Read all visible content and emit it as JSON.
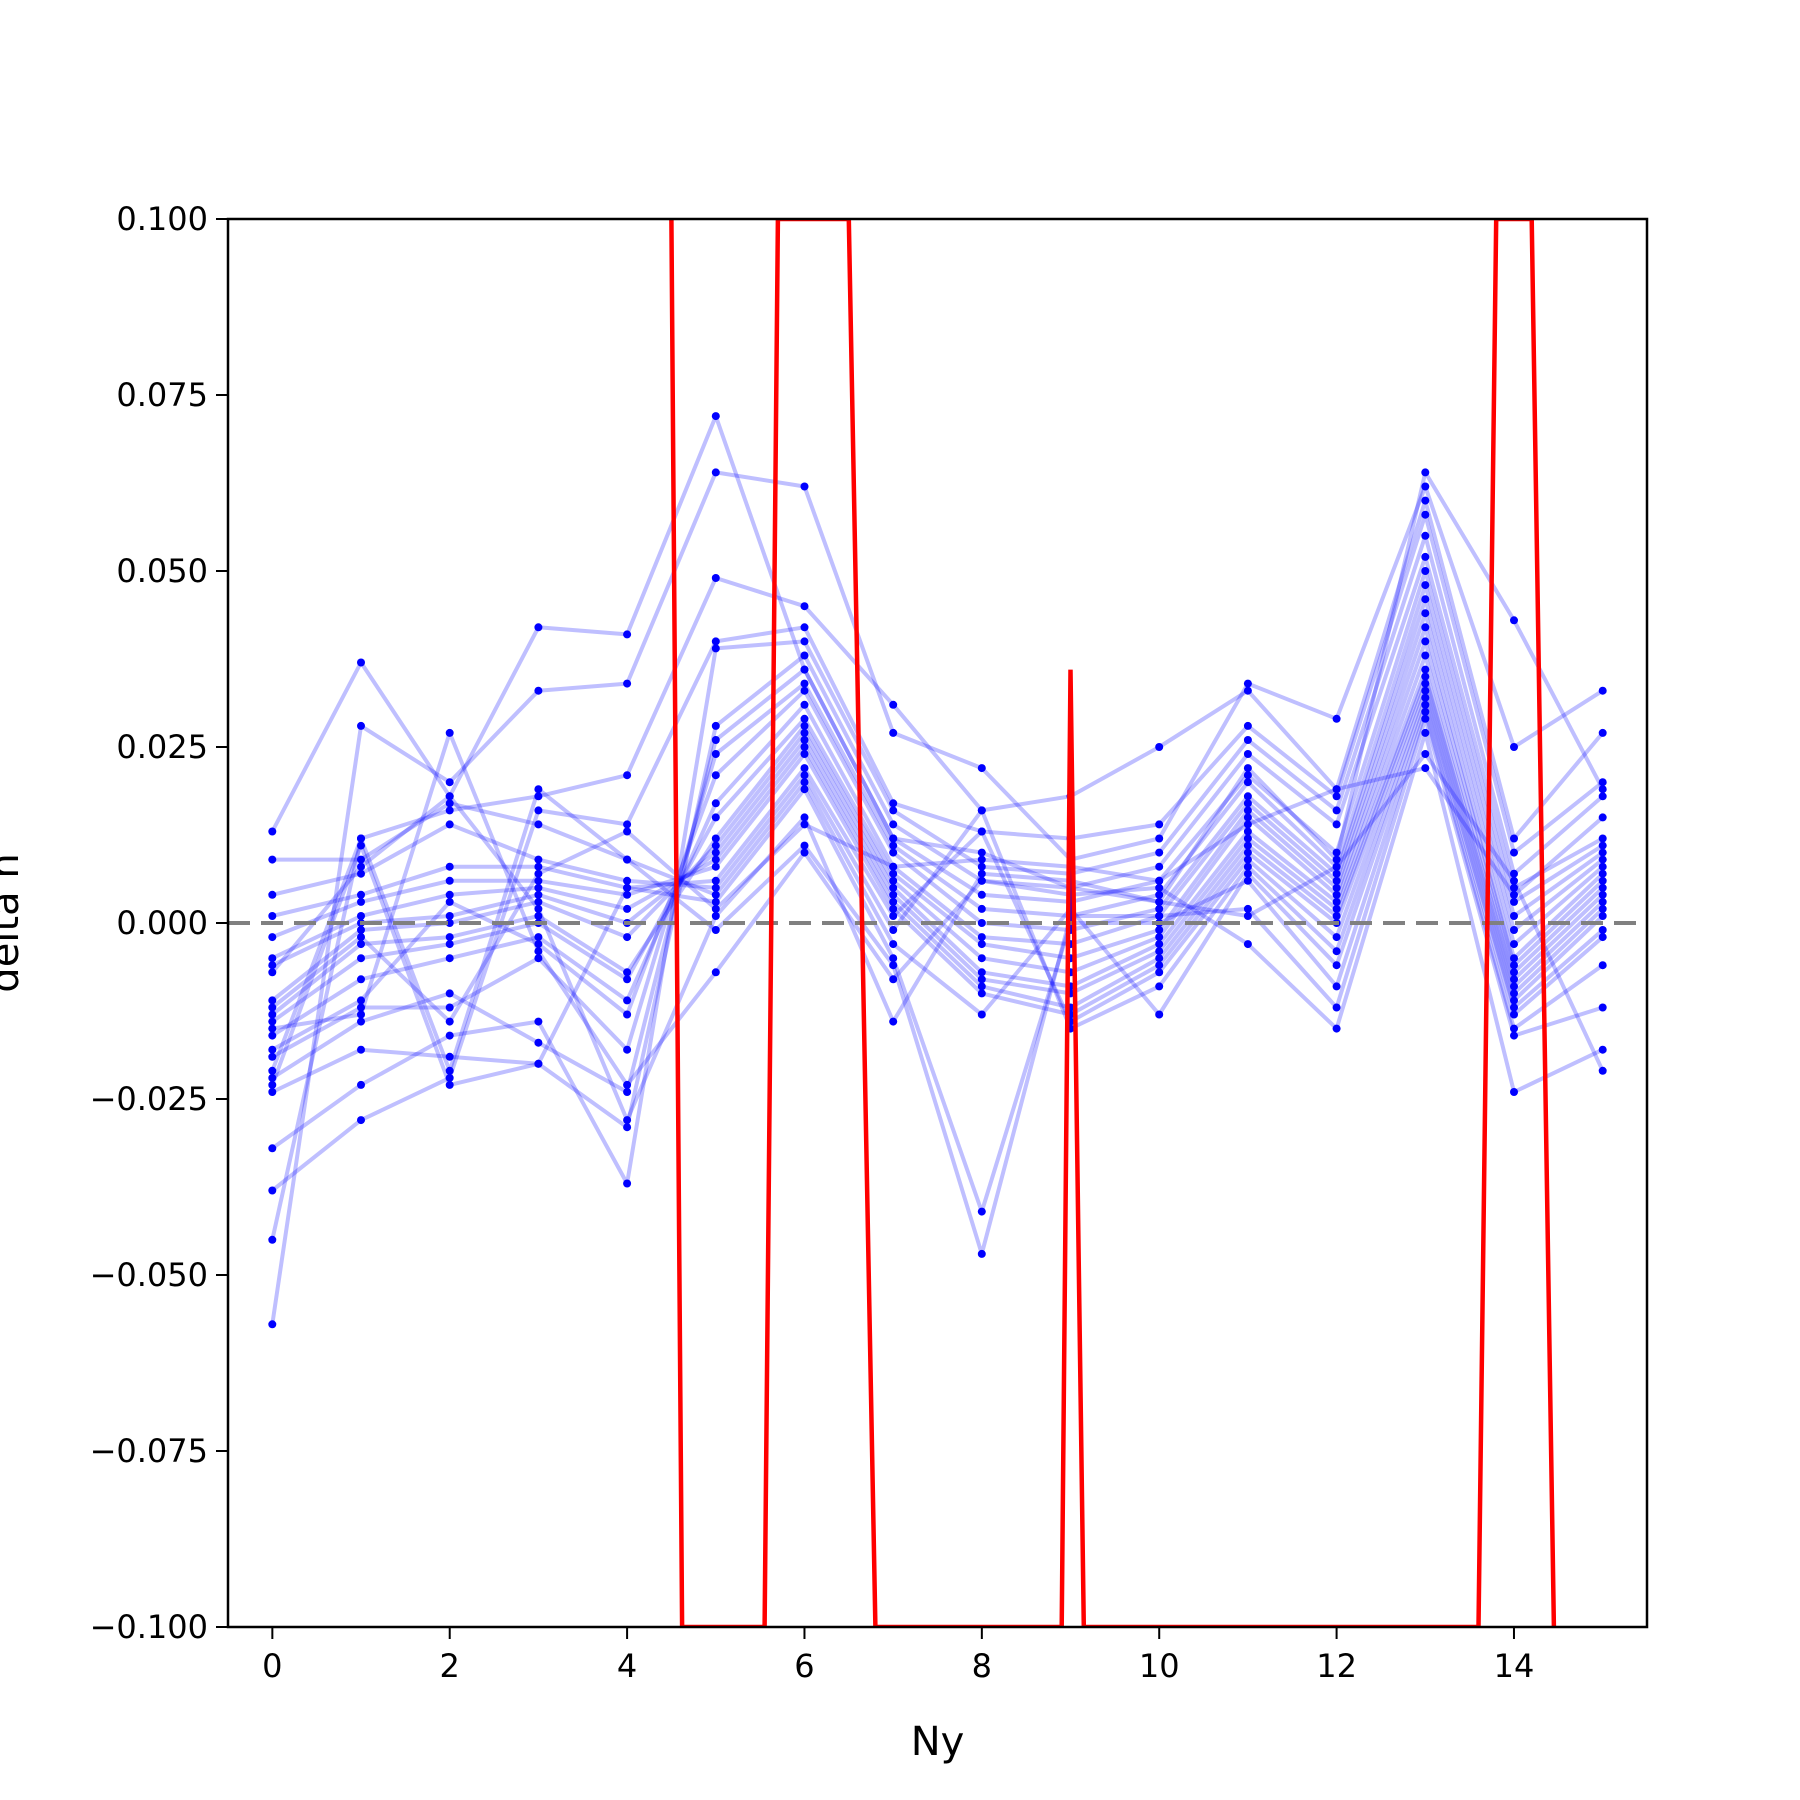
{
  "chart_data": {
    "type": "line",
    "xlabel": "Ny",
    "ylabel": "delta n",
    "xlim": [
      -0.5,
      15.5
    ],
    "ylim": [
      -0.1,
      0.1
    ],
    "xticks": [
      "0",
      "2",
      "4",
      "6",
      "8",
      "10",
      "12",
      "14"
    ],
    "yticks": [
      "−0.100",
      "−0.075",
      "−0.050",
      "−0.025",
      "0.000",
      "0.025",
      "0.050",
      "0.075",
      "0.100"
    ],
    "reference_line": {
      "y": 0.0,
      "style": "dashed",
      "color": "#808080"
    },
    "highlight_series": {
      "color": "#ff0000",
      "x": [
        4.5,
        4.62,
        5.55,
        5.7,
        6.5,
        6.8,
        8.9,
        9.0,
        9.15,
        13.6,
        13.8,
        14.2,
        14.45
      ],
      "y": [
        0.1,
        -0.1,
        -0.1,
        0.1,
        0.1,
        -0.1,
        -0.1,
        0.036,
        -0.1,
        -0.1,
        0.1,
        0.1,
        -0.1
      ]
    },
    "blue_series": {
      "color": "#0000ff",
      "x": [
        0,
        1,
        2,
        3,
        4,
        5,
        6,
        7,
        8,
        9,
        10,
        11,
        12,
        13,
        14,
        15
      ],
      "series": [
        {
          "values": [
            0.013,
            0.037,
            0.018,
            0.042,
            0.041,
            0.072,
            0.036,
            0.012,
            0.01,
            0.005,
            0.003,
            0.022,
            0.009,
            0.064,
            0.043,
            0.019
          ]
        },
        {
          "values": [
            -0.057,
            0.028,
            0.02,
            0.033,
            0.034,
            0.064,
            0.062,
            0.027,
            0.022,
            0.009,
            0.012,
            0.034,
            0.029,
            0.062,
            0.025,
            0.033
          ]
        },
        {
          "values": [
            -0.045,
            0.012,
            0.016,
            0.018,
            0.021,
            0.049,
            0.045,
            0.031,
            0.016,
            0.018,
            0.025,
            0.033,
            0.019,
            0.06,
            0.012,
            0.027
          ]
        },
        {
          "values": [
            -0.038,
            -0.028,
            -0.022,
            0.016,
            0.014,
            0.04,
            0.042,
            0.017,
            0.013,
            0.012,
            0.014,
            0.028,
            0.018,
            0.058,
            0.01,
            0.02
          ]
        },
        {
          "values": [
            -0.032,
            -0.023,
            -0.016,
            -0.014,
            -0.037,
            0.039,
            0.04,
            0.016,
            0.008,
            0.007,
            0.01,
            0.026,
            0.016,
            0.055,
            0.007,
            0.018
          ]
        },
        {
          "values": [
            -0.024,
            -0.018,
            -0.019,
            -0.02,
            -0.029,
            0.028,
            0.038,
            0.014,
            0.006,
            0.005,
            0.008,
            0.024,
            0.014,
            0.052,
            0.005,
            0.012
          ]
        },
        {
          "values": [
            -0.022,
            -0.014,
            -0.01,
            -0.017,
            -0.024,
            0.026,
            0.036,
            0.012,
            0.004,
            0.003,
            0.006,
            0.021,
            0.01,
            0.05,
            0.003,
            0.011
          ]
        },
        {
          "values": [
            -0.019,
            -0.012,
            -0.012,
            -0.005,
            -0.018,
            0.024,
            0.034,
            0.011,
            0.002,
            0.001,
            0.004,
            0.02,
            0.008,
            0.048,
            0.001,
            0.01
          ]
        },
        {
          "values": [
            -0.018,
            -0.011,
            0.003,
            -0.003,
            -0.013,
            0.021,
            0.033,
            0.01,
            0.0,
            -0.001,
            0.002,
            0.018,
            0.007,
            0.046,
            -0.001,
            0.009
          ]
        },
        {
          "values": [
            -0.016,
            -0.008,
            -0.005,
            -0.002,
            -0.011,
            0.017,
            0.031,
            0.008,
            -0.002,
            -0.003,
            0.001,
            0.017,
            0.006,
            0.044,
            -0.003,
            0.008
          ]
        },
        {
          "values": [
            -0.014,
            -0.005,
            -0.003,
            0.0,
            -0.008,
            0.015,
            0.029,
            0.007,
            -0.003,
            -0.005,
            -0.001,
            0.016,
            0.005,
            0.042,
            -0.005,
            0.007
          ]
        },
        {
          "values": [
            -0.013,
            -0.003,
            -0.002,
            0.001,
            -0.007,
            0.012,
            0.028,
            0.006,
            -0.005,
            -0.007,
            -0.002,
            0.015,
            0.004,
            0.04,
            -0.006,
            0.006
          ]
        },
        {
          "values": [
            -0.011,
            -0.001,
            0.0,
            0.003,
            -0.002,
            0.011,
            0.027,
            0.005,
            -0.007,
            -0.009,
            -0.003,
            0.013,
            0.003,
            0.038,
            -0.007,
            0.005
          ]
        },
        {
          "values": [
            -0.006,
            0.0,
            0.001,
            0.004,
            0.0,
            0.01,
            0.026,
            0.004,
            -0.008,
            -0.01,
            -0.004,
            0.012,
            0.002,
            0.036,
            -0.008,
            0.004
          ]
        },
        {
          "values": [
            -0.005,
            0.001,
            0.004,
            0.005,
            0.002,
            0.009,
            0.025,
            0.003,
            -0.009,
            -0.012,
            -0.005,
            0.011,
            0.001,
            0.035,
            -0.009,
            0.003
          ]
        },
        {
          "values": [
            -0.002,
            0.003,
            0.006,
            0.006,
            0.004,
            0.008,
            0.024,
            0.002,
            -0.01,
            -0.013,
            -0.006,
            0.01,
            0.0,
            0.034,
            -0.01,
            0.002
          ]
        },
        {
          "values": [
            0.001,
            0.004,
            0.008,
            0.008,
            0.005,
            0.006,
            0.022,
            0.001,
            0.013,
            -0.014,
            -0.007,
            0.009,
            -0.002,
            0.033,
            -0.011,
            0.001
          ]
        },
        {
          "values": [
            0.004,
            0.007,
            0.014,
            0.009,
            0.006,
            0.005,
            0.021,
            -0.001,
            0.016,
            -0.015,
            -0.009,
            0.008,
            -0.004,
            0.032,
            -0.012,
            -0.001
          ]
        },
        {
          "values": [
            0.009,
            0.009,
            0.017,
            0.014,
            0.009,
            0.004,
            0.02,
            -0.003,
            -0.013,
            0.002,
            -0.013,
            0.007,
            -0.006,
            0.031,
            -0.013,
            -0.002
          ]
        },
        {
          "values": [
            -0.023,
            0.011,
            -0.023,
            -0.02,
            0.005,
            0.003,
            0.019,
            -0.005,
            -0.041,
            0.0,
            0.0,
            0.006,
            -0.009,
            0.03,
            -0.015,
            -0.006
          ]
        },
        {
          "values": [
            -0.021,
            0.012,
            -0.021,
            0.019,
            0.009,
            -0.001,
            0.011,
            -0.006,
            -0.047,
            0.001,
            0.001,
            0.002,
            -0.012,
            0.029,
            -0.016,
            -0.012
          ]
        },
        {
          "values": [
            -0.015,
            -0.013,
            0.027,
            -0.004,
            -0.023,
            -0.007,
            0.01,
            -0.008,
            0.006,
            0.004,
            0.005,
            -0.003,
            -0.015,
            0.027,
            -0.024,
            -0.018
          ]
        },
        {
          "values": [
            -0.007,
            0.008,
            0.018,
            0.002,
            -0.028,
            0.001,
            0.015,
            -0.014,
            0.007,
            0.006,
            0.003,
            0.001,
            0.008,
            0.024,
            0.006,
            -0.021
          ]
        },
        {
          "values": [
            -0.012,
            -0.002,
            -0.014,
            0.007,
            0.013,
            0.002,
            0.014,
            0.008,
            0.009,
            0.008,
            0.006,
            0.014,
            0.019,
            0.022,
            0.004,
            0.015
          ]
        }
      ]
    }
  }
}
